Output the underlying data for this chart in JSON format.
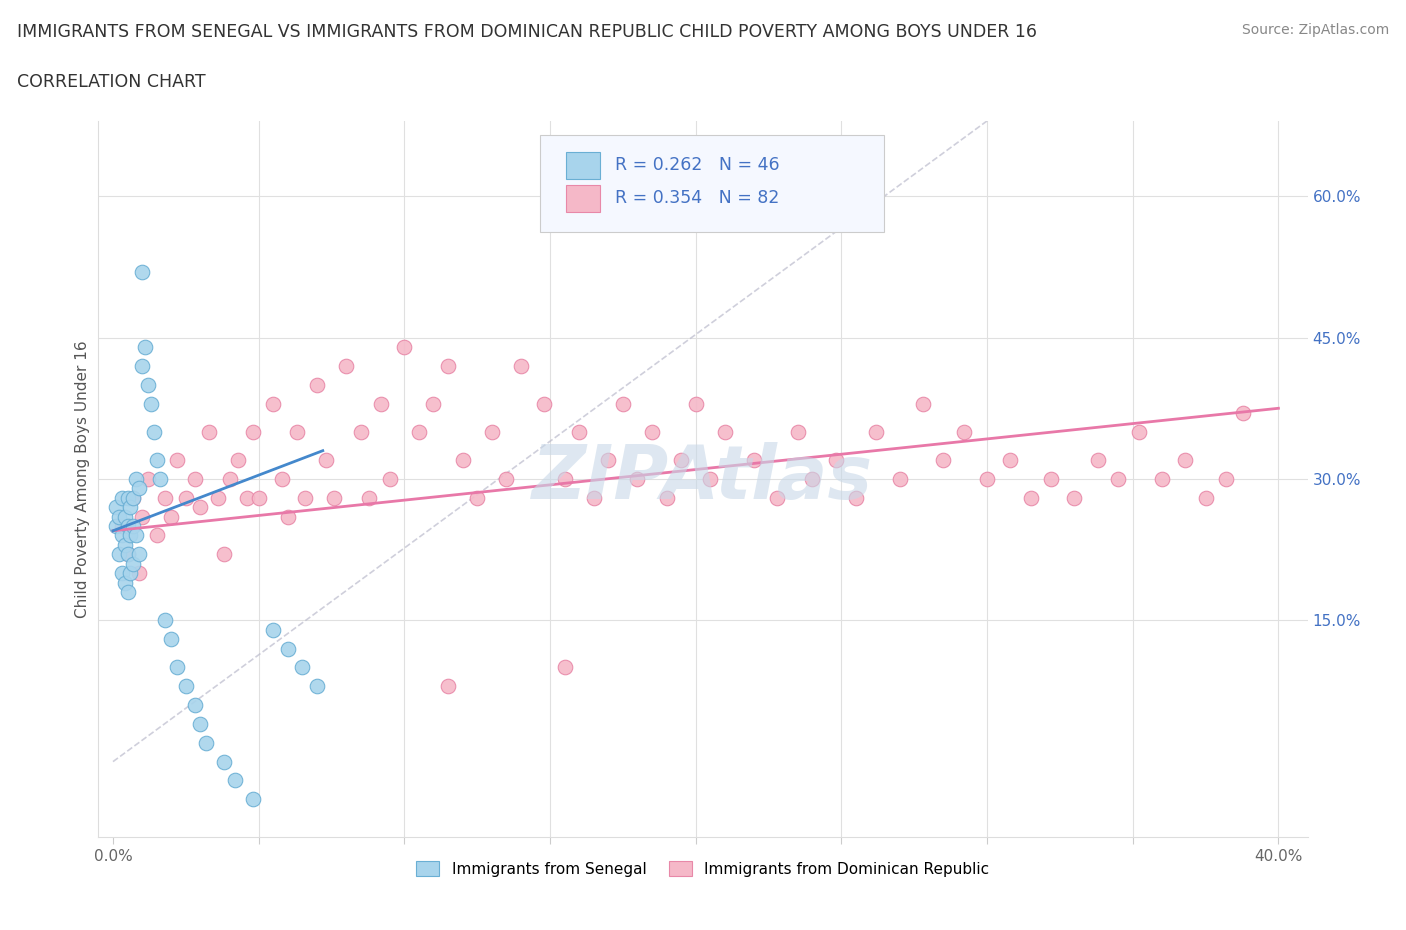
{
  "title": "IMMIGRANTS FROM SENEGAL VS IMMIGRANTS FROM DOMINICAN REPUBLIC CHILD POVERTY AMONG BOYS UNDER 16",
  "subtitle": "CORRELATION CHART",
  "source": "Source: ZipAtlas.com",
  "ylabel": "Child Poverty Among Boys Under 16",
  "xlim": [
    -0.005,
    0.41
  ],
  "ylim": [
    -0.08,
    0.68
  ],
  "xticks": [
    0.0,
    0.05,
    0.1,
    0.15,
    0.2,
    0.25,
    0.3,
    0.35,
    0.4
  ],
  "xtick_labels": [
    "0.0%",
    "",
    "",
    "",
    "",
    "",
    "",
    "",
    "40.0%"
  ],
  "ytick_right_labels": [
    "",
    "15.0%",
    "30.0%",
    "45.0%",
    "60.0%"
  ],
  "ytick_right_values": [
    -0.08,
    0.15,
    0.3,
    0.45,
    0.6
  ],
  "hgrid_values": [
    0.15,
    0.3,
    0.45,
    0.6
  ],
  "senegal_color": "#a8d4ec",
  "senegal_edge": "#6aafd4",
  "dominican_color": "#f5b8c8",
  "dominican_edge": "#e888a8",
  "trend_senegal_color": "#4488cc",
  "trend_dominican_color": "#e878a8",
  "legend_R_senegal": "0.262",
  "legend_N_senegal": "46",
  "legend_R_dominican": "0.354",
  "legend_N_dominican": "82",
  "watermark": "ZIPAtlas",
  "watermark_color": "#c8d8e8",
  "legend_label_color": "#4472c4",
  "legend_N_color": "#cc2244",
  "title_color": "#333333",
  "source_color": "#888888",
  "ylabel_color": "#555555"
}
